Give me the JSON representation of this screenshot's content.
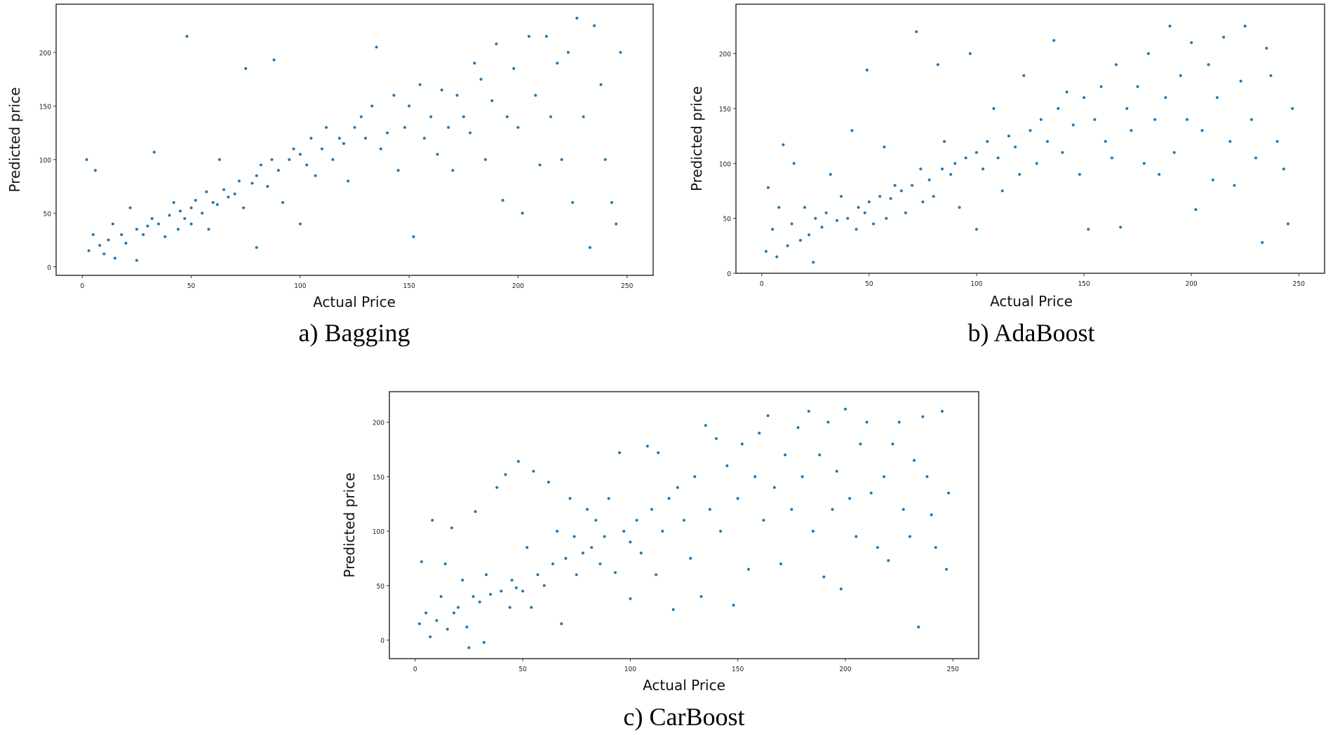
{
  "chart_data": [
    {
      "type": "scatter",
      "caption": "a) Bagging",
      "xlabel": "Actual Price",
      "ylabel": "Predicted price",
      "xlim": [
        -12,
        262
      ],
      "ylim": [
        -8,
        245
      ],
      "xticks": [
        0,
        50,
        100,
        150,
        200,
        250
      ],
      "yticks": [
        0,
        50,
        100,
        150,
        200
      ],
      "grid": false,
      "color": "#1f77b4",
      "points": [
        [
          3,
          15
        ],
        [
          5,
          30
        ],
        [
          2,
          100
        ],
        [
          6,
          90
        ],
        [
          8,
          20
        ],
        [
          10,
          12
        ],
        [
          12,
          25
        ],
        [
          14,
          40
        ],
        [
          15,
          8
        ],
        [
          18,
          30
        ],
        [
          20,
          22
        ],
        [
          22,
          55
        ],
        [
          25,
          35
        ],
        [
          25,
          6
        ],
        [
          28,
          30
        ],
        [
          30,
          38
        ],
        [
          32,
          45
        ],
        [
          33,
          107
        ],
        [
          35,
          40
        ],
        [
          38,
          28
        ],
        [
          40,
          48
        ],
        [
          42,
          60
        ],
        [
          44,
          35
        ],
        [
          45,
          52
        ],
        [
          47,
          45
        ],
        [
          48,
          215
        ],
        [
          50,
          55
        ],
        [
          50,
          40
        ],
        [
          52,
          62
        ],
        [
          55,
          50
        ],
        [
          57,
          70
        ],
        [
          58,
          35
        ],
        [
          60,
          60
        ],
        [
          62,
          58
        ],
        [
          63,
          100
        ],
        [
          65,
          72
        ],
        [
          67,
          65
        ],
        [
          70,
          68
        ],
        [
          72,
          80
        ],
        [
          74,
          55
        ],
        [
          75,
          185
        ],
        [
          78,
          78
        ],
        [
          80,
          85
        ],
        [
          80,
          18
        ],
        [
          82,
          95
        ],
        [
          85,
          75
        ],
        [
          87,
          100
        ],
        [
          88,
          193
        ],
        [
          90,
          90
        ],
        [
          92,
          60
        ],
        [
          95,
          100
        ],
        [
          97,
          110
        ],
        [
          100,
          105
        ],
        [
          100,
          40
        ],
        [
          103,
          95
        ],
        [
          105,
          120
        ],
        [
          107,
          85
        ],
        [
          110,
          110
        ],
        [
          112,
          130
        ],
        [
          115,
          100
        ],
        [
          118,
          120
        ],
        [
          120,
          115
        ],
        [
          122,
          80
        ],
        [
          125,
          130
        ],
        [
          128,
          140
        ],
        [
          130,
          120
        ],
        [
          133,
          150
        ],
        [
          135,
          205
        ],
        [
          137,
          110
        ],
        [
          140,
          125
        ],
        [
          143,
          160
        ],
        [
          145,
          90
        ],
        [
          148,
          130
        ],
        [
          150,
          150
        ],
        [
          152,
          28
        ],
        [
          155,
          170
        ],
        [
          157,
          120
        ],
        [
          160,
          140
        ],
        [
          163,
          105
        ],
        [
          165,
          165
        ],
        [
          168,
          130
        ],
        [
          170,
          90
        ],
        [
          172,
          160
        ],
        [
          175,
          140
        ],
        [
          178,
          125
        ],
        [
          180,
          190
        ],
        [
          183,
          175
        ],
        [
          185,
          100
        ],
        [
          188,
          155
        ],
        [
          190,
          208
        ],
        [
          193,
          62
        ],
        [
          195,
          140
        ],
        [
          198,
          185
        ],
        [
          200,
          130
        ],
        [
          202,
          50
        ],
        [
          205,
          215
        ],
        [
          208,
          160
        ],
        [
          210,
          95
        ],
        [
          213,
          215
        ],
        [
          215,
          140
        ],
        [
          218,
          190
        ],
        [
          220,
          100
        ],
        [
          223,
          200
        ],
        [
          225,
          60
        ],
        [
          227,
          232
        ],
        [
          230,
          140
        ],
        [
          233,
          18
        ],
        [
          235,
          225
        ],
        [
          238,
          170
        ],
        [
          240,
          100
        ],
        [
          243,
          60
        ],
        [
          245,
          40
        ],
        [
          247,
          200
        ]
      ]
    },
    {
      "type": "scatter",
      "caption": "b) AdaBoost",
      "xlabel": "Actual Price",
      "ylabel": "Predicted price",
      "xlim": [
        -12,
        262
      ],
      "ylim": [
        0,
        245
      ],
      "xticks": [
        0,
        50,
        100,
        150,
        200,
        250
      ],
      "yticks": [
        0,
        50,
        100,
        150,
        200
      ],
      "grid": false,
      "color": "#1f77b4",
      "points": [
        [
          2,
          20
        ],
        [
          3,
          78
        ],
        [
          5,
          40
        ],
        [
          7,
          15
        ],
        [
          8,
          60
        ],
        [
          10,
          117
        ],
        [
          12,
          25
        ],
        [
          14,
          45
        ],
        [
          15,
          100
        ],
        [
          18,
          30
        ],
        [
          20,
          60
        ],
        [
          22,
          35
        ],
        [
          24,
          10
        ],
        [
          25,
          50
        ],
        [
          28,
          42
        ],
        [
          30,
          55
        ],
        [
          32,
          90
        ],
        [
          35,
          48
        ],
        [
          37,
          70
        ],
        [
          40,
          50
        ],
        [
          42,
          130
        ],
        [
          44,
          40
        ],
        [
          45,
          60
        ],
        [
          48,
          55
        ],
        [
          49,
          185
        ],
        [
          50,
          65
        ],
        [
          52,
          45
        ],
        [
          55,
          70
        ],
        [
          57,
          115
        ],
        [
          58,
          50
        ],
        [
          60,
          68
        ],
        [
          62,
          80
        ],
        [
          65,
          75
        ],
        [
          67,
          55
        ],
        [
          70,
          80
        ],
        [
          72,
          220
        ],
        [
          74,
          95
        ],
        [
          75,
          65
        ],
        [
          78,
          85
        ],
        [
          80,
          70
        ],
        [
          82,
          190
        ],
        [
          84,
          95
        ],
        [
          85,
          120
        ],
        [
          88,
          90
        ],
        [
          90,
          100
        ],
        [
          92,
          60
        ],
        [
          95,
          105
        ],
        [
          97,
          200
        ],
        [
          100,
          110
        ],
        [
          100,
          40
        ],
        [
          103,
          95
        ],
        [
          105,
          120
        ],
        [
          108,
          150
        ],
        [
          110,
          105
        ],
        [
          112,
          75
        ],
        [
          115,
          125
        ],
        [
          118,
          115
        ],
        [
          120,
          90
        ],
        [
          122,
          180
        ],
        [
          125,
          130
        ],
        [
          128,
          100
        ],
        [
          130,
          140
        ],
        [
          133,
          120
        ],
        [
          136,
          212
        ],
        [
          138,
          150
        ],
        [
          140,
          110
        ],
        [
          142,
          165
        ],
        [
          145,
          135
        ],
        [
          148,
          90
        ],
        [
          150,
          160
        ],
        [
          152,
          40
        ],
        [
          155,
          140
        ],
        [
          158,
          170
        ],
        [
          160,
          120
        ],
        [
          163,
          105
        ],
        [
          165,
          190
        ],
        [
          167,
          42
        ],
        [
          170,
          150
        ],
        [
          172,
          130
        ],
        [
          175,
          170
        ],
        [
          178,
          100
        ],
        [
          180,
          200
        ],
        [
          183,
          140
        ],
        [
          185,
          90
        ],
        [
          188,
          160
        ],
        [
          190,
          225
        ],
        [
          192,
          110
        ],
        [
          195,
          180
        ],
        [
          198,
          140
        ],
        [
          200,
          210
        ],
        [
          202,
          58
        ],
        [
          205,
          130
        ],
        [
          208,
          190
        ],
        [
          210,
          85
        ],
        [
          212,
          160
        ],
        [
          215,
          215
        ],
        [
          218,
          120
        ],
        [
          220,
          80
        ],
        [
          223,
          175
        ],
        [
          225,
          225
        ],
        [
          228,
          140
        ],
        [
          230,
          105
        ],
        [
          233,
          28
        ],
        [
          235,
          205
        ],
        [
          237,
          180
        ],
        [
          240,
          120
        ],
        [
          243,
          95
        ],
        [
          245,
          45
        ],
        [
          247,
          150
        ]
      ]
    },
    {
      "type": "scatter",
      "caption": "c) CarBoost",
      "xlabel": "Actual Price",
      "ylabel": "Predicted price",
      "xlim": [
        -12,
        262
      ],
      "ylim": [
        -17,
        228
      ],
      "xticks": [
        0,
        50,
        100,
        150,
        200,
        250
      ],
      "yticks": [
        0,
        50,
        100,
        150,
        200
      ],
      "grid": false,
      "color": "#1f77b4",
      "points": [
        [
          2,
          15
        ],
        [
          3,
          72
        ],
        [
          5,
          25
        ],
        [
          7,
          3
        ],
        [
          8,
          110
        ],
        [
          10,
          18
        ],
        [
          12,
          40
        ],
        [
          14,
          70
        ],
        [
          15,
          10
        ],
        [
          17,
          103
        ],
        [
          18,
          25
        ],
        [
          20,
          30
        ],
        [
          22,
          55
        ],
        [
          24,
          12
        ],
        [
          25,
          -7
        ],
        [
          27,
          40
        ],
        [
          28,
          118
        ],
        [
          30,
          35
        ],
        [
          32,
          -2
        ],
        [
          33,
          60
        ],
        [
          35,
          42
        ],
        [
          38,
          140
        ],
        [
          40,
          45
        ],
        [
          42,
          152
        ],
        [
          44,
          30
        ],
        [
          45,
          55
        ],
        [
          47,
          48
        ],
        [
          48,
          164
        ],
        [
          50,
          45
        ],
        [
          52,
          85
        ],
        [
          54,
          30
        ],
        [
          55,
          155
        ],
        [
          57,
          60
        ],
        [
          60,
          50
        ],
        [
          62,
          145
        ],
        [
          64,
          70
        ],
        [
          66,
          100
        ],
        [
          68,
          15
        ],
        [
          70,
          75
        ],
        [
          72,
          130
        ],
        [
          74,
          95
        ],
        [
          75,
          60
        ],
        [
          78,
          80
        ],
        [
          80,
          120
        ],
        [
          82,
          85
        ],
        [
          84,
          110
        ],
        [
          86,
          70
        ],
        [
          88,
          95
        ],
        [
          90,
          130
        ],
        [
          93,
          62
        ],
        [
          95,
          172
        ],
        [
          97,
          100
        ],
        [
          100,
          90
        ],
        [
          100,
          38
        ],
        [
          103,
          110
        ],
        [
          105,
          80
        ],
        [
          108,
          178
        ],
        [
          110,
          120
        ],
        [
          112,
          60
        ],
        [
          113,
          172
        ],
        [
          115,
          100
        ],
        [
          118,
          130
        ],
        [
          120,
          28
        ],
        [
          122,
          140
        ],
        [
          125,
          110
        ],
        [
          128,
          75
        ],
        [
          130,
          150
        ],
        [
          133,
          40
        ],
        [
          135,
          197
        ],
        [
          137,
          120
        ],
        [
          140,
          185
        ],
        [
          142,
          100
        ],
        [
          145,
          160
        ],
        [
          148,
          32
        ],
        [
          150,
          130
        ],
        [
          152,
          180
        ],
        [
          155,
          65
        ],
        [
          158,
          150
        ],
        [
          160,
          190
        ],
        [
          162,
          110
        ],
        [
          164,
          206
        ],
        [
          167,
          140
        ],
        [
          170,
          70
        ],
        [
          172,
          170
        ],
        [
          175,
          120
        ],
        [
          178,
          195
        ],
        [
          180,
          150
        ],
        [
          183,
          210
        ],
        [
          185,
          100
        ],
        [
          188,
          170
        ],
        [
          190,
          58
        ],
        [
          192,
          200
        ],
        [
          194,
          120
        ],
        [
          196,
          155
        ],
        [
          198,
          47
        ],
        [
          200,
          212
        ],
        [
          202,
          130
        ],
        [
          205,
          95
        ],
        [
          207,
          180
        ],
        [
          210,
          200
        ],
        [
          212,
          135
        ],
        [
          215,
          85
        ],
        [
          218,
          150
        ],
        [
          220,
          73
        ],
        [
          222,
          180
        ],
        [
          225,
          200
        ],
        [
          227,
          120
        ],
        [
          230,
          95
        ],
        [
          232,
          165
        ],
        [
          234,
          12
        ],
        [
          236,
          205
        ],
        [
          238,
          150
        ],
        [
          240,
          115
        ],
        [
          242,
          85
        ],
        [
          245,
          210
        ],
        [
          247,
          65
        ],
        [
          248,
          135
        ]
      ]
    }
  ]
}
